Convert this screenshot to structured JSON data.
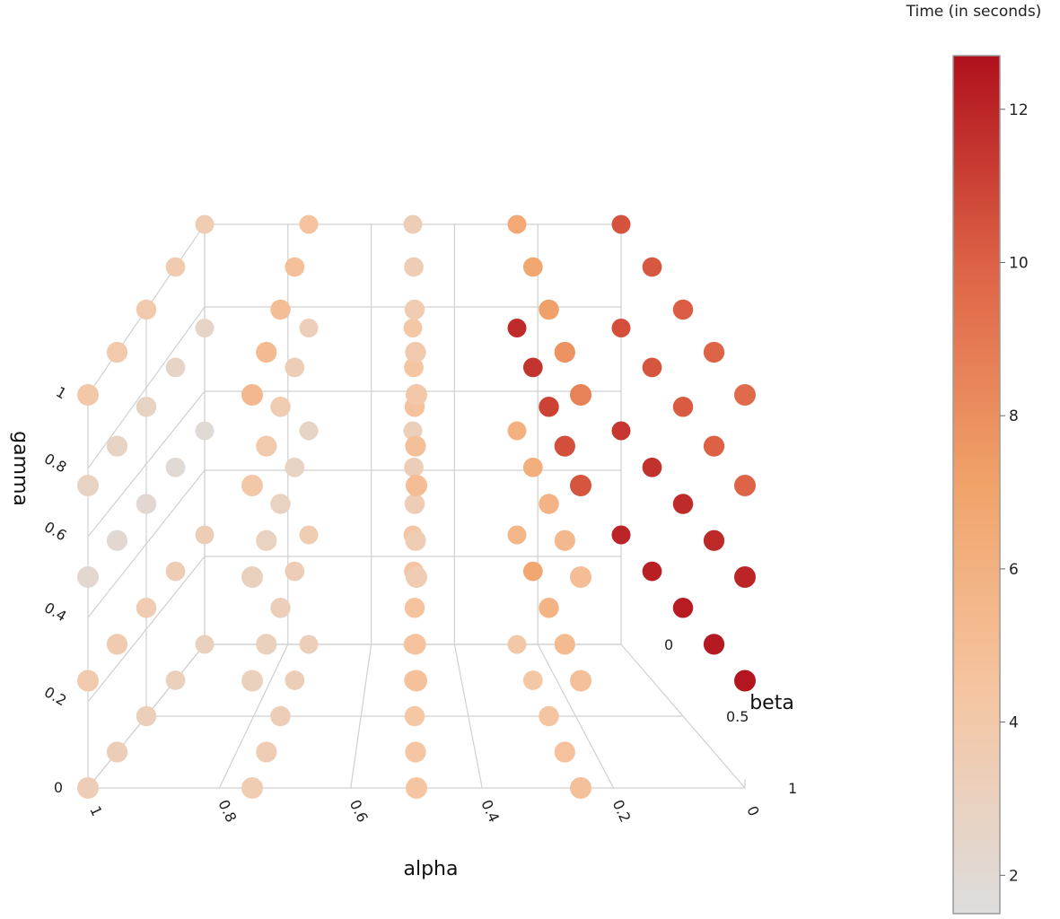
{
  "chart_data": {
    "type": "scatter",
    "title": "",
    "axes": {
      "x": {
        "label": "alpha",
        "ticks": [
          "0",
          "0.2",
          "0.4",
          "0.6",
          "0.8",
          "1"
        ],
        "range": [
          0,
          1
        ]
      },
      "y": {
        "label": "beta",
        "ticks": [
          "0",
          "0.5",
          "1"
        ],
        "range": [
          0,
          1
        ]
      },
      "z": {
        "label": "gamma",
        "ticks": [
          "0",
          "0.2",
          "0.4",
          "0.6",
          "0.8",
          "1"
        ],
        "range": [
          0,
          1
        ]
      }
    },
    "colorbar": {
      "title": "Time (in seconds)",
      "ticks": [
        "2",
        "4",
        "6",
        "8",
        "10",
        "12"
      ],
      "range": [
        1.5,
        12.7
      ],
      "colorscale": [
        "#dddddd",
        "#f5c6a3",
        "#f1a36a",
        "#de6447",
        "#b0101c"
      ]
    },
    "grid": true,
    "legend": "none",
    "series": [
      {
        "points": [
          {
            "alpha": 0,
            "beta": 0,
            "gamma": 0.25,
            "time": 12.0
          },
          {
            "alpha": 0,
            "beta": 0.25,
            "gamma": 0.25,
            "time": 12.2
          },
          {
            "alpha": 0,
            "beta": 0.5,
            "gamma": 0.25,
            "time": 12.3
          },
          {
            "alpha": 0,
            "beta": 0.75,
            "gamma": 0.25,
            "time": 12.4
          },
          {
            "alpha": 0,
            "beta": 1,
            "gamma": 0.25,
            "time": 12.5
          },
          {
            "alpha": 0,
            "beta": 0,
            "gamma": 0.5,
            "time": 11.4
          },
          {
            "alpha": 0,
            "beta": 0.25,
            "gamma": 0.5,
            "time": 11.6
          },
          {
            "alpha": 0,
            "beta": 0.5,
            "gamma": 0.5,
            "time": 11.8
          },
          {
            "alpha": 0,
            "beta": 0.75,
            "gamma": 0.5,
            "time": 11.9
          },
          {
            "alpha": 0,
            "beta": 1,
            "gamma": 0.5,
            "time": 12.0
          },
          {
            "alpha": 0,
            "beta": 0,
            "gamma": 0.75,
            "time": 10.6
          },
          {
            "alpha": 0,
            "beta": 0.25,
            "gamma": 0.75,
            "time": 10.4
          },
          {
            "alpha": 0,
            "beta": 0.5,
            "gamma": 0.75,
            "time": 10.2
          },
          {
            "alpha": 0,
            "beta": 0.75,
            "gamma": 0.75,
            "time": 10.0
          },
          {
            "alpha": 0,
            "beta": 1,
            "gamma": 0.75,
            "time": 9.9
          },
          {
            "alpha": 0,
            "beta": 0,
            "gamma": 1,
            "time": 10.5
          },
          {
            "alpha": 0,
            "beta": 0.25,
            "gamma": 1,
            "time": 10.3
          },
          {
            "alpha": 0,
            "beta": 0.5,
            "gamma": 1,
            "time": 10.1
          },
          {
            "alpha": 0,
            "beta": 0.75,
            "gamma": 1,
            "time": 9.9
          },
          {
            "alpha": 0,
            "beta": 1,
            "gamma": 1,
            "time": 9.6
          },
          {
            "alpha": 0.25,
            "beta": 0,
            "gamma": 0,
            "time": 4.0
          },
          {
            "alpha": 0.25,
            "beta": 0.25,
            "gamma": 0,
            "time": 4.2
          },
          {
            "alpha": 0.25,
            "beta": 0.5,
            "gamma": 0,
            "time": 4.4
          },
          {
            "alpha": 0.25,
            "beta": 0.75,
            "gamma": 0,
            "time": 4.6
          },
          {
            "alpha": 0.25,
            "beta": 1,
            "gamma": 0,
            "time": 4.8
          },
          {
            "alpha": 0.25,
            "beta": 0,
            "gamma": 0.25,
            "time": 5.6
          },
          {
            "alpha": 0.25,
            "beta": 0.25,
            "gamma": 0.25,
            "time": 6.8
          },
          {
            "alpha": 0.25,
            "beta": 0.5,
            "gamma": 0.25,
            "time": 5.8
          },
          {
            "alpha": 0.25,
            "beta": 0.75,
            "gamma": 0.25,
            "time": 5.2
          },
          {
            "alpha": 0.25,
            "beta": 1,
            "gamma": 0.25,
            "time": 4.8
          },
          {
            "alpha": 0.25,
            "beta": 0,
            "gamma": 0.5,
            "time": 6.0
          },
          {
            "alpha": 0.25,
            "beta": 0.25,
            "gamma": 0.5,
            "time": 6.2
          },
          {
            "alpha": 0.25,
            "beta": 0.5,
            "gamma": 0.5,
            "time": 5.8
          },
          {
            "alpha": 0.25,
            "beta": 0.75,
            "gamma": 0.5,
            "time": 5.4
          },
          {
            "alpha": 0.25,
            "beta": 1,
            "gamma": 0.5,
            "time": 5.0
          },
          {
            "alpha": 0.25,
            "beta": 0,
            "gamma": 0.75,
            "time": 11.8
          },
          {
            "alpha": 0.25,
            "beta": 0.25,
            "gamma": 0.75,
            "time": 11.5
          },
          {
            "alpha": 0.25,
            "beta": 0.5,
            "gamma": 0.75,
            "time": 11.0
          },
          {
            "alpha": 0.25,
            "beta": 0.75,
            "gamma": 0.75,
            "time": 10.6
          },
          {
            "alpha": 0.25,
            "beta": 1,
            "gamma": 0.75,
            "time": 10.4
          },
          {
            "alpha": 0.25,
            "beta": 0,
            "gamma": 1,
            "time": 6.6
          },
          {
            "alpha": 0.25,
            "beta": 0.25,
            "gamma": 1,
            "time": 6.8
          },
          {
            "alpha": 0.25,
            "beta": 0.5,
            "gamma": 1,
            "time": 7.2
          },
          {
            "alpha": 0.25,
            "beta": 0.75,
            "gamma": 1,
            "time": 7.8
          },
          {
            "alpha": 0.25,
            "beta": 1,
            "gamma": 1,
            "time": 8.6
          },
          {
            "alpha": 0.5,
            "beta": 0,
            "gamma": 0,
            "time": 4.0
          },
          {
            "alpha": 0.5,
            "beta": 0.25,
            "gamma": 0,
            "time": 4.1
          },
          {
            "alpha": 0.5,
            "beta": 0.5,
            "gamma": 0,
            "time": 4.2
          },
          {
            "alpha": 0.5,
            "beta": 0.75,
            "gamma": 0,
            "time": 4.3
          },
          {
            "alpha": 0.5,
            "beta": 1,
            "gamma": 0,
            "time": 4.4
          },
          {
            "alpha": 0.5,
            "beta": 0,
            "gamma": 0.25,
            "time": 4.3
          },
          {
            "alpha": 0.5,
            "beta": 0.25,
            "gamma": 0.25,
            "time": 4.4
          },
          {
            "alpha": 0.5,
            "beta": 0.5,
            "gamma": 0.25,
            "time": 4.5
          },
          {
            "alpha": 0.5,
            "beta": 0.75,
            "gamma": 0.25,
            "time": 4.6
          },
          {
            "alpha": 0.5,
            "beta": 1,
            "gamma": 0.25,
            "time": 4.7
          },
          {
            "alpha": 0.5,
            "beta": 0,
            "gamma": 0.5,
            "time": 3.2
          },
          {
            "alpha": 0.5,
            "beta": 0.25,
            "gamma": 0.5,
            "time": 3.3
          },
          {
            "alpha": 0.5,
            "beta": 0.5,
            "gamma": 0.5,
            "time": 3.4
          },
          {
            "alpha": 0.5,
            "beta": 0.75,
            "gamma": 0.5,
            "time": 3.5
          },
          {
            "alpha": 0.5,
            "beta": 1,
            "gamma": 0.5,
            "time": 3.6
          },
          {
            "alpha": 0.5,
            "beta": 0,
            "gamma": 0.75,
            "time": 4.2
          },
          {
            "alpha": 0.5,
            "beta": 0.25,
            "gamma": 0.75,
            "time": 4.4
          },
          {
            "alpha": 0.5,
            "beta": 0.5,
            "gamma": 0.75,
            "time": 4.6
          },
          {
            "alpha": 0.5,
            "beta": 0.75,
            "gamma": 0.75,
            "time": 4.8
          },
          {
            "alpha": 0.5,
            "beta": 1,
            "gamma": 0.75,
            "time": 5.0
          },
          {
            "alpha": 0.5,
            "beta": 0,
            "gamma": 1,
            "time": 3.4
          },
          {
            "alpha": 0.5,
            "beta": 0.25,
            "gamma": 1,
            "time": 3.5
          },
          {
            "alpha": 0.5,
            "beta": 0.5,
            "gamma": 1,
            "time": 3.6
          },
          {
            "alpha": 0.5,
            "beta": 0.75,
            "gamma": 1,
            "time": 3.8
          },
          {
            "alpha": 0.5,
            "beta": 1,
            "gamma": 1,
            "time": 4.0
          },
          {
            "alpha": 0.75,
            "beta": 0,
            "gamma": 0,
            "time": 3.2
          },
          {
            "alpha": 0.75,
            "beta": 0.25,
            "gamma": 0,
            "time": 3.3
          },
          {
            "alpha": 0.75,
            "beta": 0.5,
            "gamma": 0,
            "time": 3.4
          },
          {
            "alpha": 0.75,
            "beta": 0.75,
            "gamma": 0,
            "time": 3.5
          },
          {
            "alpha": 0.75,
            "beta": 1,
            "gamma": 0,
            "time": 3.6
          },
          {
            "alpha": 0.75,
            "beta": 0,
            "gamma": 0.25,
            "time": 3.6
          },
          {
            "alpha": 0.75,
            "beta": 0.25,
            "gamma": 0.25,
            "time": 3.4
          },
          {
            "alpha": 0.75,
            "beta": 0.5,
            "gamma": 0.25,
            "time": 3.2
          },
          {
            "alpha": 0.75,
            "beta": 0.75,
            "gamma": 0.25,
            "time": 3.0
          },
          {
            "alpha": 0.75,
            "beta": 1,
            "gamma": 0.25,
            "time": 3.0
          },
          {
            "alpha": 0.75,
            "beta": 0,
            "gamma": 0.5,
            "time": 2.6
          },
          {
            "alpha": 0.75,
            "beta": 0.25,
            "gamma": 0.5,
            "time": 2.7
          },
          {
            "alpha": 0.75,
            "beta": 0.5,
            "gamma": 0.5,
            "time": 2.8
          },
          {
            "alpha": 0.75,
            "beta": 0.75,
            "gamma": 0.5,
            "time": 2.9
          },
          {
            "alpha": 0.75,
            "beta": 1,
            "gamma": 0.5,
            "time": 3.0
          },
          {
            "alpha": 0.75,
            "beta": 0,
            "gamma": 0.75,
            "time": 3.2
          },
          {
            "alpha": 0.75,
            "beta": 0.25,
            "gamma": 0.75,
            "time": 3.4
          },
          {
            "alpha": 0.75,
            "beta": 0.5,
            "gamma": 0.75,
            "time": 3.6
          },
          {
            "alpha": 0.75,
            "beta": 0.75,
            "gamma": 0.75,
            "time": 3.8
          },
          {
            "alpha": 0.75,
            "beta": 1,
            "gamma": 0.75,
            "time": 4.0
          },
          {
            "alpha": 0.75,
            "beta": 0,
            "gamma": 1,
            "time": 4.6
          },
          {
            "alpha": 0.75,
            "beta": 0.25,
            "gamma": 1,
            "time": 4.8
          },
          {
            "alpha": 0.75,
            "beta": 0.5,
            "gamma": 1,
            "time": 5.0
          },
          {
            "alpha": 0.75,
            "beta": 0.75,
            "gamma": 1,
            "time": 5.2
          },
          {
            "alpha": 0.75,
            "beta": 1,
            "gamma": 1,
            "time": 5.4
          },
          {
            "alpha": 1,
            "beta": 0,
            "gamma": 0,
            "time": 3.0
          },
          {
            "alpha": 1,
            "beta": 0.25,
            "gamma": 0,
            "time": 3.1
          },
          {
            "alpha": 1,
            "beta": 0.5,
            "gamma": 0,
            "time": 3.2
          },
          {
            "alpha": 1,
            "beta": 0.75,
            "gamma": 0,
            "time": 3.3
          },
          {
            "alpha": 1,
            "beta": 1,
            "gamma": 0,
            "time": 3.4
          },
          {
            "alpha": 1,
            "beta": 0,
            "gamma": 0.25,
            "time": 3.4
          },
          {
            "alpha": 1,
            "beta": 0.25,
            "gamma": 0.25,
            "time": 3.5
          },
          {
            "alpha": 1,
            "beta": 0.5,
            "gamma": 0.25,
            "time": 3.6
          },
          {
            "alpha": 1,
            "beta": 0.75,
            "gamma": 0.25,
            "time": 3.7
          },
          {
            "alpha": 1,
            "beta": 1,
            "gamma": 0.25,
            "time": 3.8
          },
          {
            "alpha": 1,
            "beta": 0,
            "gamma": 0.5,
            "time": 1.9
          },
          {
            "alpha": 1,
            "beta": 0.25,
            "gamma": 0.5,
            "time": 2.0
          },
          {
            "alpha": 1,
            "beta": 0.5,
            "gamma": 0.5,
            "time": 2.1
          },
          {
            "alpha": 1,
            "beta": 0.75,
            "gamma": 0.5,
            "time": 2.1
          },
          {
            "alpha": 1,
            "beta": 1,
            "gamma": 0.5,
            "time": 2.2
          },
          {
            "alpha": 1,
            "beta": 0,
            "gamma": 0.75,
            "time": 2.6
          },
          {
            "alpha": 1,
            "beta": 0.25,
            "gamma": 0.75,
            "time": 2.6
          },
          {
            "alpha": 1,
            "beta": 0.5,
            "gamma": 0.75,
            "time": 2.7
          },
          {
            "alpha": 1,
            "beta": 0.75,
            "gamma": 0.75,
            "time": 2.7
          },
          {
            "alpha": 1,
            "beta": 1,
            "gamma": 0.75,
            "time": 2.8
          },
          {
            "alpha": 1,
            "beta": 0,
            "gamma": 1,
            "time": 3.6
          },
          {
            "alpha": 1,
            "beta": 0.25,
            "gamma": 1,
            "time": 3.7
          },
          {
            "alpha": 1,
            "beta": 0.5,
            "gamma": 1,
            "time": 3.8
          },
          {
            "alpha": 1,
            "beta": 0.75,
            "gamma": 1,
            "time": 3.9
          },
          {
            "alpha": 1,
            "beta": 1,
            "gamma": 1,
            "time": 4.0
          }
        ]
      }
    ]
  }
}
